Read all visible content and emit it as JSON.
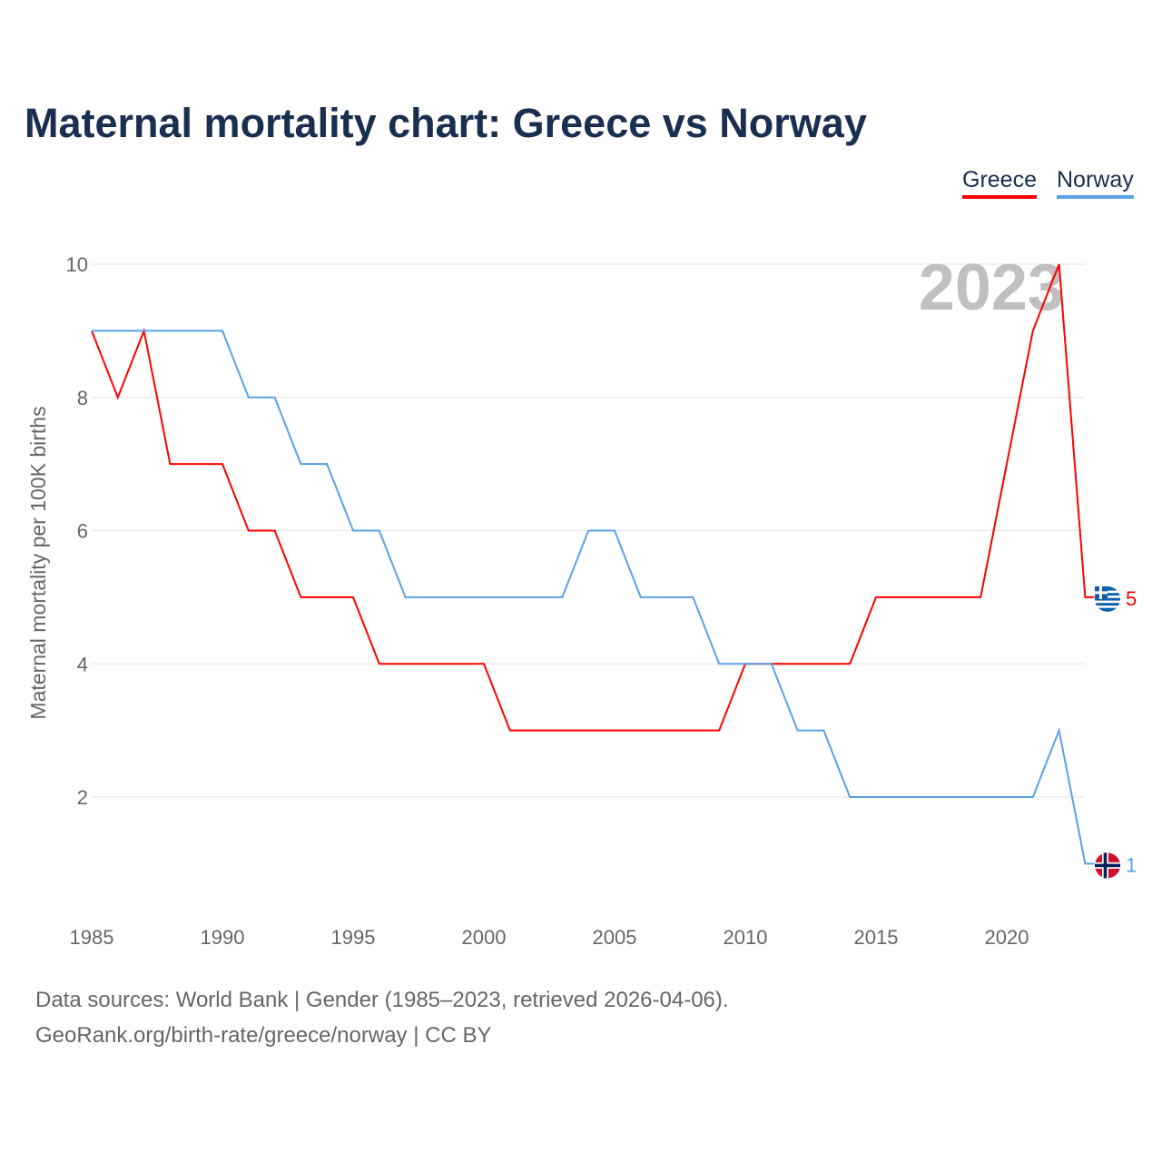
{
  "chart_data": {
    "type": "line",
    "title": "Maternal mortality chart: Greece vs Norway",
    "ylabel": "Maternal mortality per 100K births",
    "xlabel": "",
    "year_label": "2023",
    "xlim": [
      1985,
      2023
    ],
    "ylim": [
      0,
      10
    ],
    "x_ticks": [
      1985,
      1990,
      1995,
      2000,
      2005,
      2010,
      2015,
      2020
    ],
    "y_ticks": [
      2,
      4,
      6,
      8,
      10
    ],
    "grid": true,
    "legend_position": "top-right",
    "x": [
      1985,
      1986,
      1987,
      1988,
      1989,
      1990,
      1991,
      1992,
      1993,
      1994,
      1995,
      1996,
      1997,
      1998,
      1999,
      2000,
      2001,
      2002,
      2003,
      2004,
      2005,
      2006,
      2007,
      2008,
      2009,
      2010,
      2011,
      2012,
      2013,
      2014,
      2015,
      2016,
      2017,
      2018,
      2019,
      2020,
      2021,
      2022,
      2023
    ],
    "series": [
      {
        "name": "Greece",
        "color": "#ff0000",
        "end_label": "5",
        "values": [
          9,
          8,
          9,
          7,
          7,
          7,
          6,
          6,
          5,
          5,
          5,
          4,
          4,
          4,
          4,
          4,
          3,
          3,
          3,
          3,
          3,
          3,
          3,
          3,
          3,
          4,
          4,
          4,
          4,
          4,
          5,
          5,
          5,
          5,
          5,
          7,
          9,
          10,
          5
        ]
      },
      {
        "name": "Norway",
        "color": "#5aa0e6",
        "end_label": "1",
        "values": [
          9,
          9,
          9,
          9,
          9,
          9,
          8,
          8,
          7,
          7,
          6,
          6,
          5,
          5,
          5,
          5,
          5,
          5,
          5,
          6,
          6,
          5,
          5,
          5,
          4,
          4,
          4,
          3,
          3,
          2,
          2,
          2,
          2,
          2,
          2,
          2,
          2,
          3,
          1
        ]
      }
    ]
  },
  "footer": {
    "line1": "Data sources: World Bank | Gender (1985–2023, retrieved 2026-04-06).",
    "line2": "GeoRank.org/birth-rate/greece/norway | CC BY"
  }
}
